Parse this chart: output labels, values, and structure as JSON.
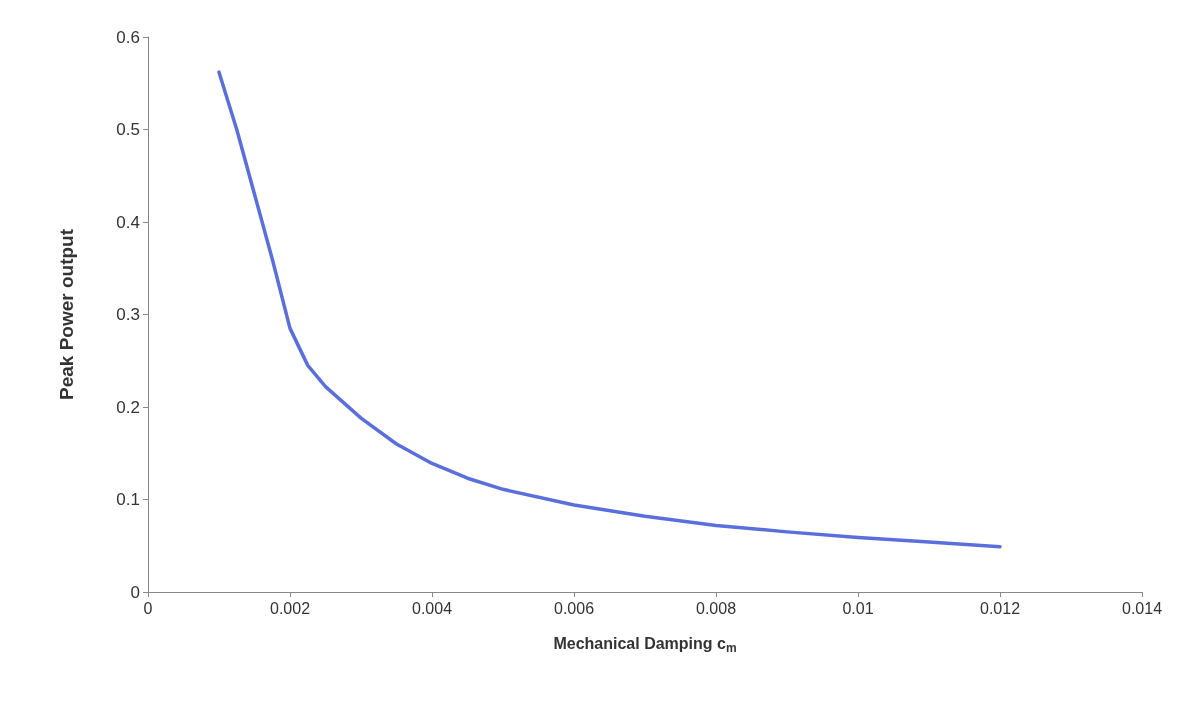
{
  "chart_data": {
    "type": "line",
    "xlabel": "Mechanical Damping c$_{m}$",
    "ylabel": "Peak Power output",
    "x": [
      0.001,
      0.00125,
      0.0015,
      0.00175,
      0.002,
      0.00225,
      0.0025,
      0.00275,
      0.003,
      0.0035,
      0.004,
      0.0045,
      0.005,
      0.006,
      0.007,
      0.008,
      0.009,
      0.01,
      0.011,
      0.012
    ],
    "series": [
      {
        "color": "#5a6fdc",
        "values": [
          0.562,
          0.5,
          0.43,
          0.36,
          0.285,
          0.245,
          0.222,
          0.205,
          0.188,
          0.16,
          0.139,
          0.123,
          0.111,
          0.094,
          0.082,
          0.072,
          0.065,
          0.059,
          0.054,
          0.049
        ]
      }
    ],
    "xlim": [
      0,
      0.014
    ],
    "xticks": [
      0,
      0.002,
      0.004,
      0.006,
      0.008,
      0.01,
      0.012,
      0.014
    ],
    "ylim": [
      0,
      0.6
    ],
    "yticks": [
      0,
      0.1,
      0.2,
      0.3,
      0.4,
      0.5,
      0.6
    ],
    "grid": false,
    "marker": "none",
    "line_style": "solid"
  }
}
